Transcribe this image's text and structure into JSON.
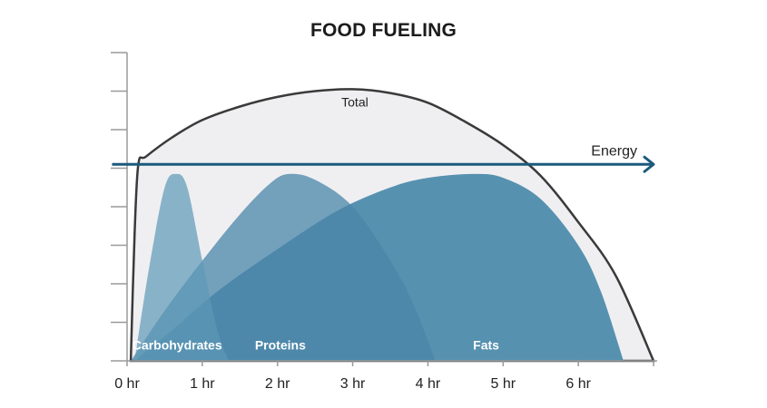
{
  "chart_data": {
    "type": "area",
    "title": "FOOD FUELING",
    "xlabel": "",
    "ylabel": "",
    "x_ticks": [
      "0 hr",
      "1 hr",
      "2 hr",
      "3 hr",
      "4 hr",
      "5 hr",
      "6 hr"
    ],
    "xlim": [
      0,
      7
    ],
    "ylim": [
      0,
      8
    ],
    "grid": false,
    "series": [
      {
        "name": "Total",
        "color": "#efeff1",
        "stroke": "#3a3a3a",
        "points": [
          [
            0.05,
            0
          ],
          [
            0.1,
            3.3
          ],
          [
            0.15,
            5.1
          ],
          [
            0.25,
            5.3
          ],
          [
            0.6,
            5.8
          ],
          [
            1.0,
            6.25
          ],
          [
            1.5,
            6.6
          ],
          [
            2.0,
            6.85
          ],
          [
            2.5,
            7.0
          ],
          [
            3.0,
            7.05
          ],
          [
            3.5,
            6.95
          ],
          [
            4.0,
            6.7
          ],
          [
            4.5,
            6.2
          ],
          [
            5.0,
            5.6
          ],
          [
            5.5,
            4.8
          ],
          [
            6.0,
            3.6
          ],
          [
            6.5,
            2.2
          ],
          [
            7.0,
            0
          ]
        ]
      },
      {
        "name": "Fats",
        "color": "#5791b0",
        "points": [
          [
            0.1,
            0
          ],
          [
            0.6,
            0.8
          ],
          [
            1.2,
            1.8
          ],
          [
            2.0,
            2.9
          ],
          [
            2.8,
            3.9
          ],
          [
            3.5,
            4.5
          ],
          [
            4.0,
            4.75
          ],
          [
            4.6,
            4.85
          ],
          [
            5.0,
            4.75
          ],
          [
            5.5,
            4.2
          ],
          [
            6.0,
            3.0
          ],
          [
            6.3,
            1.8
          ],
          [
            6.6,
            0
          ]
        ]
      },
      {
        "name": "Proteins",
        "color": "#4a86a8",
        "opacity": 0.75,
        "points": [
          [
            0.05,
            0
          ],
          [
            0.5,
            1.3
          ],
          [
            1.0,
            2.6
          ],
          [
            1.5,
            3.8
          ],
          [
            1.9,
            4.6
          ],
          [
            2.15,
            4.85
          ],
          [
            2.5,
            4.7
          ],
          [
            3.0,
            4.0
          ],
          [
            3.5,
            2.6
          ],
          [
            3.8,
            1.5
          ],
          [
            4.1,
            0
          ]
        ]
      },
      {
        "name": "Carbohydrates",
        "color": "#5d99b6",
        "opacity": 0.7,
        "points": [
          [
            0.1,
            0
          ],
          [
            0.3,
            2.5
          ],
          [
            0.5,
            4.5
          ],
          [
            0.65,
            4.85
          ],
          [
            0.8,
            4.5
          ],
          [
            1.0,
            2.6
          ],
          [
            1.2,
            0.8
          ],
          [
            1.35,
            0
          ]
        ]
      }
    ],
    "annotations": [
      {
        "text": "Total",
        "x": 2.85,
        "y": 6.6
      },
      {
        "text": "Carbohydrates",
        "x": 0.07,
        "y": 0.3
      },
      {
        "text": "Proteins",
        "x": 1.7,
        "y": 0.3
      },
      {
        "text": "Fats",
        "x": 4.6,
        "y": 0.3
      }
    ],
    "energy_line": {
      "label": "Energy",
      "y": 5.1,
      "x_from": -0.2,
      "x_to": 7.0,
      "color": "#1c5a7e"
    }
  }
}
